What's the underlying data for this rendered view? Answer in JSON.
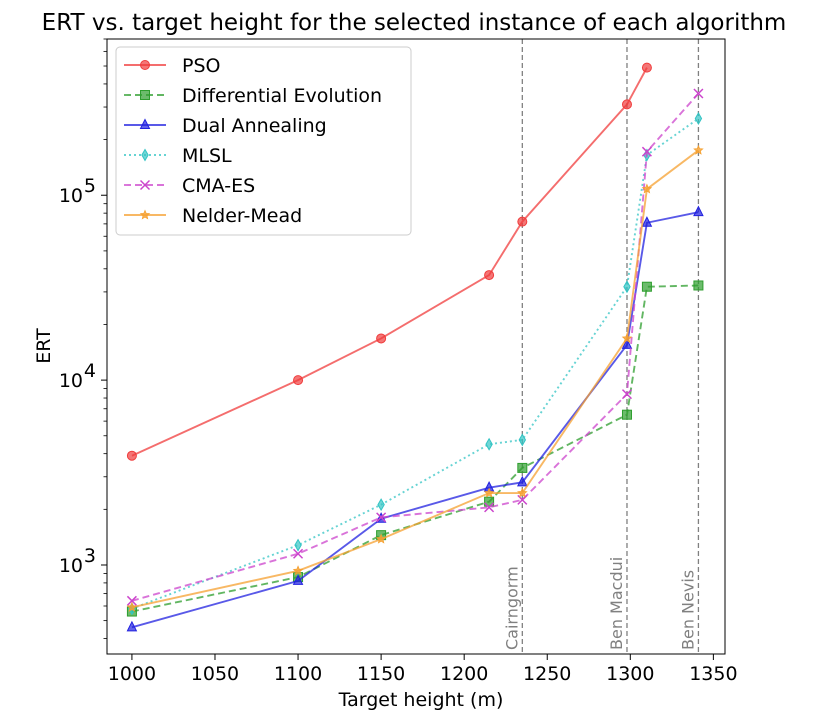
{
  "chart_data": {
    "type": "line",
    "title": "ERT vs. target height for the selected instance of each algorithm",
    "xlabel": "Target height (m)",
    "ylabel": "ERT",
    "xlim": [
      985,
      1357
    ],
    "ylim": [
      330,
      700000
    ],
    "yscale": "log",
    "xticks": [
      1000,
      1050,
      1100,
      1150,
      1200,
      1250,
      1300,
      1350
    ],
    "yticks": [
      {
        "value": 1000,
        "base": "10",
        "exp": "3"
      },
      {
        "value": 10000,
        "base": "10",
        "exp": "4"
      },
      {
        "value": 100000,
        "base": "10",
        "exp": "5"
      }
    ],
    "grid": false,
    "legend_position": "top-left",
    "annotations": [
      {
        "label": "Cairngorm",
        "x": 1235
      },
      {
        "label": "Ben Macdui",
        "x": 1298
      },
      {
        "label": "Ben Nevis",
        "x": 1341
      }
    ],
    "series": [
      {
        "name": "PSO",
        "color": "#f03c3c",
        "dash": "solid",
        "marker": "circle",
        "x": [
          1000,
          1100,
          1150,
          1215,
          1235,
          1298,
          1310
        ],
        "y": [
          3900,
          10000,
          16800,
          37000,
          72000,
          310000,
          490000
        ]
      },
      {
        "name": "Differential Evolution",
        "color": "#2e9e2e",
        "dash": "dashed",
        "marker": "square",
        "x": [
          1000,
          1100,
          1150,
          1215,
          1235,
          1298,
          1310,
          1341
        ],
        "y": [
          560,
          860,
          1450,
          2200,
          3350,
          6500,
          32000,
          32500
        ]
      },
      {
        "name": "Dual Annealing",
        "color": "#2121e0",
        "dash": "solid",
        "marker": "triangle",
        "x": [
          1000,
          1100,
          1150,
          1215,
          1235,
          1298,
          1310,
          1341
        ],
        "y": [
          460,
          820,
          1780,
          2620,
          2800,
          15500,
          71000,
          81000
        ]
      },
      {
        "name": "MLSL",
        "color": "#33c4c4",
        "dash": "dotted",
        "marker": "diamond",
        "x": [
          1000,
          1100,
          1150,
          1215,
          1235,
          1298,
          1310,
          1341
        ],
        "y": [
          580,
          1280,
          2120,
          4500,
          4750,
          32000,
          165000,
          260000
        ]
      },
      {
        "name": "CMA-ES",
        "color": "#cc44cc",
        "dash": "dashed",
        "marker": "x",
        "x": [
          1000,
          1100,
          1150,
          1215,
          1235,
          1298,
          1310,
          1341
        ],
        "y": [
          640,
          1150,
          1810,
          2050,
          2250,
          8400,
          172000,
          355000
        ]
      },
      {
        "name": "Nelder-Mead",
        "color": "#f5a030",
        "dash": "solid",
        "marker": "star",
        "x": [
          1000,
          1100,
          1150,
          1215,
          1235,
          1298,
          1310,
          1341
        ],
        "y": [
          590,
          930,
          1380,
          2450,
          2450,
          16800,
          108000,
          175000
        ]
      }
    ]
  }
}
